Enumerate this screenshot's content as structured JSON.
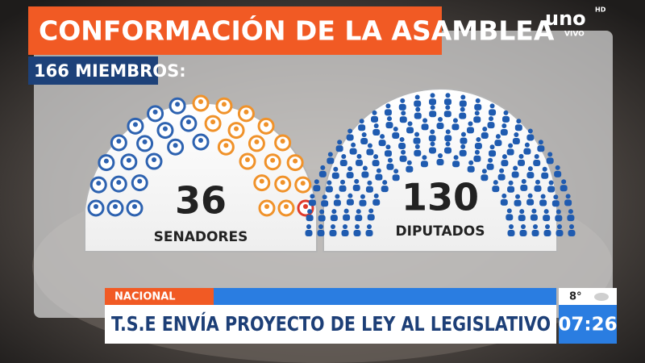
{
  "graphic": {
    "title": "CONFORMACIÓN DE LA ASAMBLEA",
    "subtitle": "166 MIEMBROS:",
    "senators": {
      "count": 36,
      "label": "SENADORES"
    },
    "deputies": {
      "count": 130,
      "label": "DIPUTADOS"
    }
  },
  "ticker": {
    "section": "NACIONAL",
    "headline": "T.S.E ENVÍA PROYECTO DE LEY AL LEGISLATIVO",
    "temperature": "8°",
    "time": "07:26"
  },
  "logo": {
    "name": "uno",
    "quality": "HD",
    "status": "VIVO"
  }
}
